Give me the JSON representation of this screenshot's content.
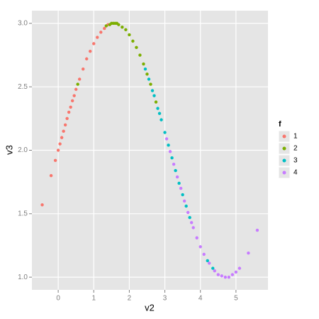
{
  "chart_data": {
    "type": "scatter",
    "x_label": "v2",
    "y_label": "v3",
    "legend_title": "f",
    "xlim": [
      -0.74,
      5.9
    ],
    "ylim": [
      0.9,
      3.1
    ],
    "xticks": [
      0,
      1,
      2,
      3,
      4,
      5
    ],
    "yticks": [
      {
        "value": 1.0,
        "label": "1.0"
      },
      {
        "value": 1.5,
        "label": "1.5"
      },
      {
        "value": 2.0,
        "label": "2.0"
      },
      {
        "value": 2.5,
        "label": "2.5"
      },
      {
        "value": 3.0,
        "label": "3.0"
      }
    ],
    "grid": true,
    "legend": "right",
    "series": [
      {
        "name": "1",
        "color": "#F8766D",
        "x": [
          -0.45,
          -0.2,
          -0.08,
          0.0,
          0.05,
          0.1,
          0.15,
          0.2,
          0.25,
          0.3,
          0.35,
          0.4,
          0.45,
          0.5,
          0.6,
          0.7,
          0.8,
          0.9,
          1.0,
          1.1,
          1.2,
          1.3,
          1.4
        ],
        "values": [
          1.57,
          1.8,
          1.92,
          2.0,
          2.05,
          2.1,
          2.15,
          2.2,
          2.25,
          2.3,
          2.34,
          2.39,
          2.43,
          2.48,
          2.56,
          2.64,
          2.72,
          2.78,
          2.84,
          2.89,
          2.93,
          2.96,
          2.99
        ]
      },
      {
        "name": "2",
        "color": "#7CAE00",
        "x": [
          0.55,
          1.35,
          1.45,
          1.5,
          1.55,
          1.6,
          1.65,
          1.7,
          1.8,
          1.9,
          2.0,
          2.1,
          2.2,
          2.3,
          2.4,
          2.5,
          2.6,
          2.75
        ],
        "values": [
          2.52,
          2.98,
          2.99,
          3.0,
          3.0,
          3.0,
          3.0,
          2.99,
          2.97,
          2.95,
          2.91,
          2.86,
          2.81,
          2.75,
          2.68,
          2.6,
          2.52,
          2.38
        ]
      },
      {
        "name": "3",
        "color": "#00BFC4",
        "x": [
          2.45,
          2.55,
          2.65,
          2.7,
          2.8,
          2.85,
          2.9,
          3.0,
          3.1,
          3.2,
          3.3,
          3.4,
          3.5,
          3.6,
          3.7,
          4.2,
          4.35
        ],
        "values": [
          2.64,
          2.56,
          2.47,
          2.43,
          2.33,
          2.29,
          2.24,
          2.14,
          2.04,
          1.94,
          1.84,
          1.74,
          1.65,
          1.56,
          1.47,
          1.13,
          1.07
        ]
      },
      {
        "name": "4",
        "color": "#C77CFF",
        "x": [
          3.05,
          3.15,
          3.25,
          3.35,
          3.45,
          3.55,
          3.65,
          3.75,
          3.8,
          3.9,
          4.0,
          4.1,
          4.25,
          4.4,
          4.5,
          4.6,
          4.7,
          4.8,
          4.9,
          5.0,
          5.1,
          5.35,
          5.6
        ],
        "values": [
          2.09,
          1.99,
          1.89,
          1.79,
          1.7,
          1.6,
          1.51,
          1.43,
          1.39,
          1.31,
          1.24,
          1.18,
          1.11,
          1.05,
          1.02,
          1.01,
          1.0,
          1.0,
          1.02,
          1.04,
          1.07,
          1.19,
          1.37
        ]
      }
    ]
  }
}
